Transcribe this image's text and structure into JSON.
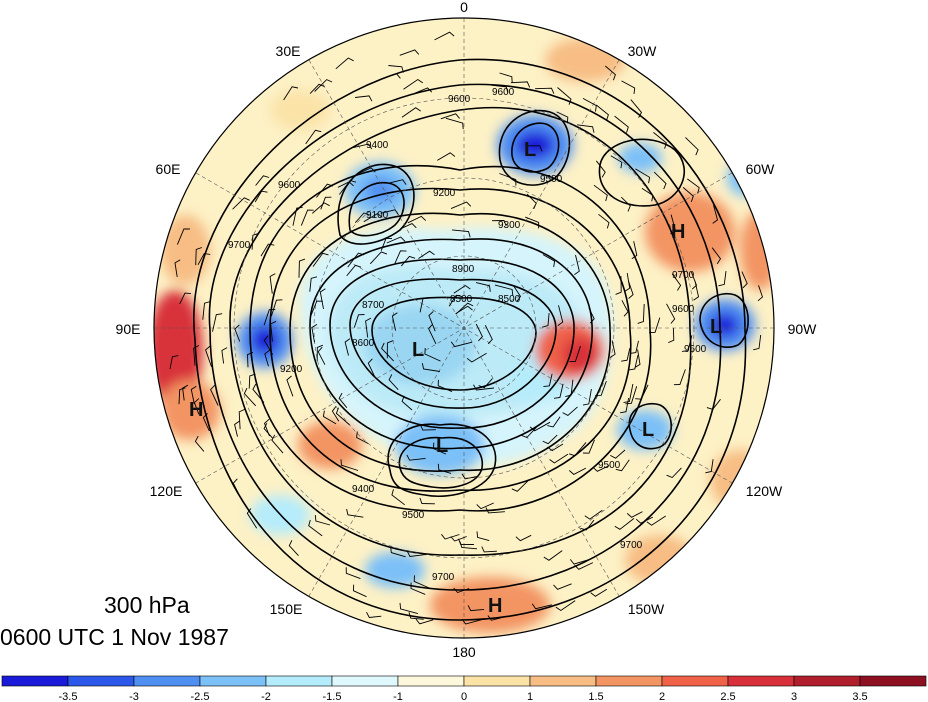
{
  "title": {
    "level": "300 hPa",
    "time": "0600 UTC 1 Nov 1987"
  },
  "longitude_labels": [
    "0",
    "30W",
    "60W",
    "90W",
    "120W",
    "150W",
    "180",
    "150E",
    "120E",
    "90E",
    "60E",
    "30E"
  ],
  "contour_labels": [
    "9600",
    "9600",
    "9400",
    "9500",
    "9300",
    "9100",
    "9200",
    "8900",
    "8700",
    "8500",
    "8500",
    "8600",
    "9700",
    "9600",
    "9600",
    "9500",
    "9500",
    "9400",
    "9200",
    "9700",
    "9700",
    "9700",
    "9600"
  ],
  "centers": [
    {
      "label": "H",
      "name": "high-center-atlantic"
    },
    {
      "label": "H",
      "name": "high-center-asia"
    },
    {
      "label": "H",
      "name": "high-center-pacific"
    },
    {
      "label": "L",
      "name": "low-center-siberia"
    },
    {
      "label": "L",
      "name": "low-center-east-siberia"
    },
    {
      "label": "L",
      "name": "low-center-europe"
    },
    {
      "label": "L",
      "name": "low-center-hudson"
    },
    {
      "label": "L",
      "name": "low-center-alaska"
    }
  ],
  "colorbar": {
    "colors": [
      "#1a1ad9",
      "#2b58e8",
      "#4f8ff2",
      "#7cc0f8",
      "#b5ecfb",
      "#def8fd",
      "#fdf8dc",
      "#fbe3a8",
      "#f7bd84",
      "#f39463",
      "#ef6248",
      "#d8303a",
      "#b01e2c",
      "#8c1022"
    ],
    "ticks": [
      "-3.5",
      "-3",
      "-2.5",
      "-2",
      "-1.5",
      "-1",
      "0",
      "1",
      "1.5",
      "2",
      "2.5",
      "3",
      "3.5"
    ]
  },
  "colors": {
    "contour": "#000000",
    "background": "#ffffff"
  }
}
